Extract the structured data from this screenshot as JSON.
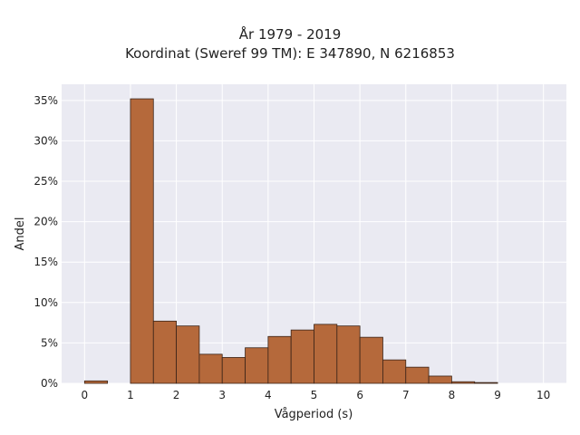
{
  "chart_data": {
    "type": "bar",
    "title_line1": "År 1979 - 2019",
    "title_line2": "Koordinat (Sweref 99 TM): E 347890, N 6216853",
    "xlabel": "Vågperiod (s)",
    "ylabel": "Andel",
    "xlim": [
      -0.5,
      10.5
    ],
    "ylim": [
      0,
      0.37
    ],
    "bin_width": 0.5,
    "x_ticks": [
      0,
      1,
      2,
      3,
      4,
      5,
      6,
      7,
      8,
      9,
      10
    ],
    "x_tick_labels": [
      "0",
      "1",
      "2",
      "3",
      "4",
      "5",
      "6",
      "7",
      "8",
      "9",
      "10"
    ],
    "y_ticks": [
      0,
      0.05,
      0.1,
      0.15,
      0.2,
      0.25,
      0.3,
      0.35
    ],
    "y_tick_labels": [
      "0%",
      "5%",
      "10%",
      "15%",
      "20%",
      "25%",
      "30%",
      "35%"
    ],
    "grid": true,
    "colors": {
      "bar": "#b5693b",
      "edge": "#3a2418",
      "plot_bg": "#eaeaf2",
      "grid": "#ffffff"
    },
    "bins": [
      {
        "x": 0.0,
        "value": 0.003
      },
      {
        "x": 0.5,
        "value": 0.0
      },
      {
        "x": 1.0,
        "value": 0.352
      },
      {
        "x": 1.5,
        "value": 0.077
      },
      {
        "x": 2.0,
        "value": 0.071
      },
      {
        "x": 2.5,
        "value": 0.036
      },
      {
        "x": 3.0,
        "value": 0.032
      },
      {
        "x": 3.5,
        "value": 0.044
      },
      {
        "x": 4.0,
        "value": 0.058
      },
      {
        "x": 4.5,
        "value": 0.066
      },
      {
        "x": 5.0,
        "value": 0.073
      },
      {
        "x": 5.5,
        "value": 0.071
      },
      {
        "x": 6.0,
        "value": 0.057
      },
      {
        "x": 6.5,
        "value": 0.029
      },
      {
        "x": 7.0,
        "value": 0.02
      },
      {
        "x": 7.5,
        "value": 0.009
      },
      {
        "x": 8.0,
        "value": 0.002
      },
      {
        "x": 8.5,
        "value": 0.001
      },
      {
        "x": 9.0,
        "value": 0.0
      },
      {
        "x": 9.5,
        "value": 0.0
      }
    ]
  }
}
